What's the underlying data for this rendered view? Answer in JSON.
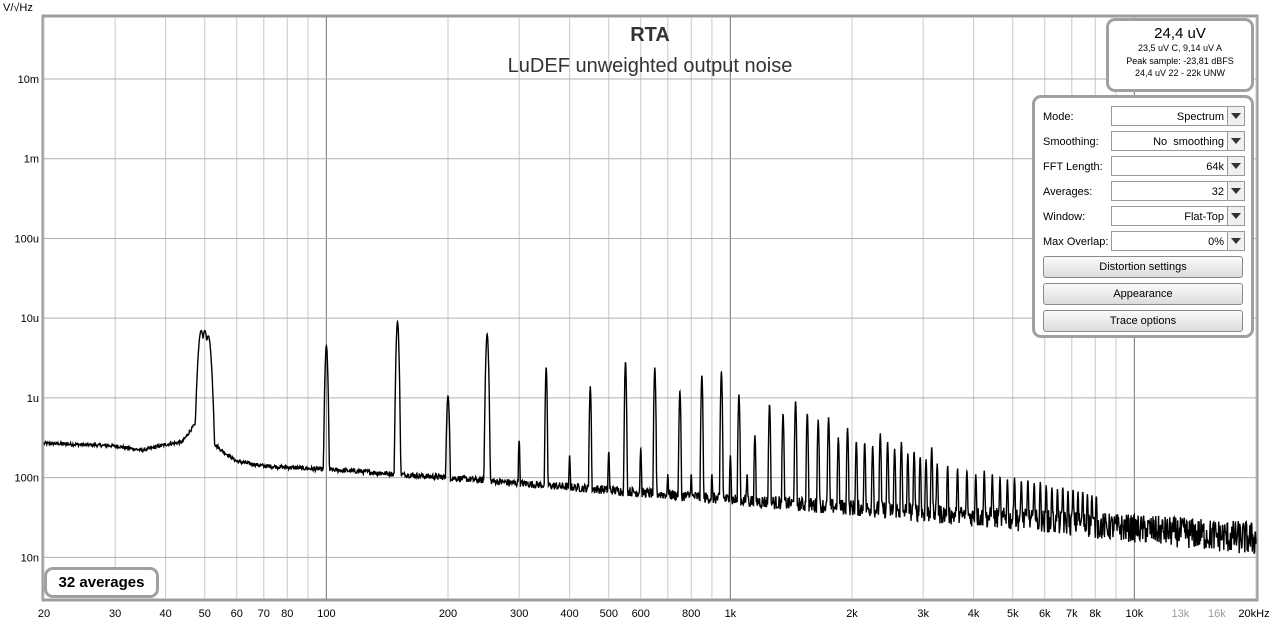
{
  "chart_data": {
    "type": "line",
    "title": "RTA",
    "subtitle": "LuDEF unweighted output noise",
    "ylabel": "V/√Hz",
    "xlabel": "",
    "x_scale": "log",
    "y_scale": "log",
    "xlim": [
      20,
      20000
    ],
    "ylim": [
      3e-09,
      0.06
    ],
    "grid": true,
    "x_ticks": [
      {
        "value": 20,
        "label": "20"
      },
      {
        "value": 30,
        "label": "30"
      },
      {
        "value": 40,
        "label": "40"
      },
      {
        "value": 50,
        "label": "50"
      },
      {
        "value": 60,
        "label": "60"
      },
      {
        "value": 70,
        "label": "70"
      },
      {
        "value": 80,
        "label": "80"
      },
      {
        "value": 100,
        "label": "100"
      },
      {
        "value": 200,
        "label": "200"
      },
      {
        "value": 300,
        "label": "300"
      },
      {
        "value": 400,
        "label": "400"
      },
      {
        "value": 500,
        "label": "500"
      },
      {
        "value": 600,
        "label": "600"
      },
      {
        "value": 800,
        "label": "800"
      },
      {
        "value": 1000,
        "label": "1k"
      },
      {
        "value": 2000,
        "label": "2k"
      },
      {
        "value": 3000,
        "label": "3k"
      },
      {
        "value": 4000,
        "label": "4k"
      },
      {
        "value": 5000,
        "label": "5k"
      },
      {
        "value": 6000,
        "label": "6k"
      },
      {
        "value": 7000,
        "label": "7k"
      },
      {
        "value": 8000,
        "label": "8k"
      },
      {
        "value": 10000,
        "label": "10k"
      },
      {
        "value": 13000,
        "label": "13k"
      },
      {
        "value": 16000,
        "label": "16k"
      },
      {
        "value": 20000,
        "label": "20kHz"
      }
    ],
    "y_ticks": [
      {
        "value": 0.01,
        "label": "10m"
      },
      {
        "value": 0.001,
        "label": "1m"
      },
      {
        "value": 0.0001,
        "label": "100u"
      },
      {
        "value": 1e-05,
        "label": "10u"
      },
      {
        "value": 1e-06,
        "label": "1u"
      },
      {
        "value": 1e-07,
        "label": "100n"
      },
      {
        "value": 1e-08,
        "label": "10n"
      }
    ],
    "series": [
      {
        "color": "#000000",
        "floor": [
          [
            20,
            2.7e-07
          ],
          [
            30,
            2.5e-07
          ],
          [
            35,
            2.2e-07
          ],
          [
            40,
            2.6e-07
          ],
          [
            44,
            2.8e-07
          ],
          [
            47,
            4.5e-07
          ],
          [
            55,
            2.2e-07
          ],
          [
            60,
            1.6e-07
          ],
          [
            70,
            1.4e-07
          ],
          [
            90,
            1.3e-07
          ],
          [
            120,
            1.2e-07
          ],
          [
            150,
            1.1e-07
          ],
          [
            200,
            1e-07
          ],
          [
            300,
            8.5e-08
          ],
          [
            500,
            7e-08
          ],
          [
            1000,
            5.3e-08
          ],
          [
            2000,
            4.2e-08
          ],
          [
            5000,
            3e-08
          ],
          [
            10000,
            2.3e-08
          ],
          [
            20000,
            1.7e-08
          ]
        ],
        "peaks": [
          [
            49,
            7e-06
          ],
          [
            50,
            7e-06
          ],
          [
            51,
            6e-06
          ],
          [
            100,
            4.5e-06
          ],
          [
            150,
            9e-06
          ],
          [
            200,
            1.05e-06
          ],
          [
            250,
            6.3e-06
          ],
          [
            300,
            2.9e-07
          ],
          [
            350,
            2.4e-06
          ],
          [
            400,
            1.9e-07
          ],
          [
            450,
            1.4e-06
          ],
          [
            500,
            2.1e-07
          ],
          [
            550,
            2.8e-06
          ],
          [
            600,
            2.3e-07
          ],
          [
            650,
            2.4e-06
          ],
          [
            700,
            1.1e-07
          ],
          [
            750,
            1.2e-06
          ],
          [
            800,
            1.1e-07
          ],
          [
            850,
            1.9e-06
          ],
          [
            900,
            1.1e-07
          ],
          [
            950,
            2.1e-06
          ],
          [
            1000,
            1.9e-07
          ],
          [
            1050,
            1.1e-06
          ],
          [
            1100,
            1.1e-07
          ],
          [
            1150,
            3.4e-07
          ],
          [
            1250,
            8.2e-07
          ],
          [
            1350,
            6.3e-07
          ],
          [
            1450,
            9e-07
          ],
          [
            1550,
            6.3e-07
          ],
          [
            1650,
            5.2e-07
          ],
          [
            1750,
            5.6e-07
          ],
          [
            1850,
            3.2e-07
          ],
          [
            1950,
            4.2e-07
          ],
          [
            2050,
            2.8e-07
          ],
          [
            2150,
            2.7e-07
          ],
          [
            2250,
            2.5e-07
          ],
          [
            2350,
            3.6e-07
          ],
          [
            2450,
            2.8e-07
          ],
          [
            2550,
            2.3e-07
          ],
          [
            2650,
            2.8e-07
          ],
          [
            2750,
            2e-07
          ],
          [
            2850,
            2.1e-07
          ],
          [
            2950,
            1.8e-07
          ],
          [
            3050,
            1.7e-07
          ],
          [
            3150,
            2.4e-07
          ],
          [
            3250,
            1.5e-07
          ],
          [
            3450,
            1.4e-07
          ],
          [
            3650,
            1.3e-07
          ],
          [
            3850,
            1.2e-07
          ],
          [
            4050,
            1.1e-07
          ],
          [
            4250,
            1.2e-07
          ],
          [
            4450,
            1.1e-07
          ],
          [
            4650,
            1e-07
          ],
          [
            4850,
            9.5e-08
          ],
          [
            5050,
            1e-07
          ],
          [
            5250,
            9e-08
          ],
          [
            5450,
            9.2e-08
          ],
          [
            5650,
            8.5e-08
          ],
          [
            5850,
            8.8e-08
          ],
          [
            6050,
            8e-08
          ],
          [
            6250,
            7.5e-08
          ],
          [
            6450,
            7.2e-08
          ],
          [
            6650,
            7.5e-08
          ],
          [
            6850,
            6.8e-08
          ],
          [
            7050,
            7e-08
          ],
          [
            7250,
            6.5e-08
          ],
          [
            7450,
            6.6e-08
          ],
          [
            7650,
            6.2e-08
          ],
          [
            7850,
            6e-08
          ],
          [
            8050,
            5.8e-08
          ]
        ]
      }
    ]
  },
  "readout": {
    "main": "24,4 uV",
    "line1": "23,5 uV C, 9,14 uV A",
    "line2": "Peak sample: -23,81 dBFS",
    "line3": "24,4 uV 22 - 22k UNW"
  },
  "controls": {
    "mode_label": "Mode:",
    "mode_value": "Spectrum",
    "smoothing_label": "Smoothing:",
    "smoothing_value": "No  smoothing",
    "fft_label": "FFT Length:",
    "fft_value": "64k",
    "averages_label": "Averages:",
    "averages_value": "32",
    "window_label": "Window:",
    "window_value": "Flat-Top",
    "overlap_label": "Max Overlap:",
    "overlap_value": "0%",
    "distortion_button": "Distortion settings",
    "appearance_button": "Appearance",
    "trace_button": "Trace options"
  },
  "status": {
    "averages_badge": "32 averages"
  }
}
